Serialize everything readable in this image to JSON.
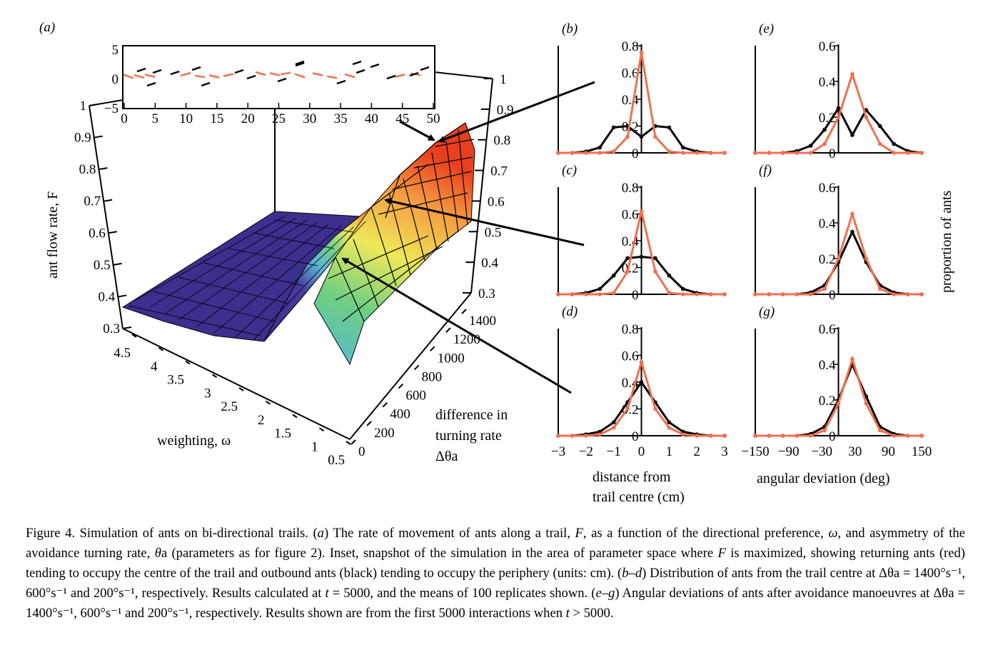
{
  "colors": {
    "red": "#f07050",
    "black": "#000000",
    "surface_low": "#3a2d8c",
    "surface_high": "#f04020"
  },
  "panel_a": {
    "label": "(a)",
    "zlabel": "ant flow rate, F",
    "z_ticks": [
      "0.3",
      "0.4",
      "0.5",
      "0.6",
      "0.7",
      "0.8",
      "0.9",
      "1"
    ],
    "right_z_ticks": [
      "0.3",
      "0.4",
      "0.5",
      "0.6",
      "0.7",
      "0.8",
      "0.9",
      "1"
    ],
    "w_ticks": [
      "4.5",
      "4",
      "3.5",
      "3",
      "2.5",
      "2",
      "1.5",
      "1",
      "0.5"
    ],
    "w_label": "weighting, ω",
    "dt_ticks": [
      "0",
      "200",
      "400",
      "600",
      "800",
      "1000",
      "1200",
      "1400"
    ],
    "dt_label_lines": [
      "difference in",
      "turning rate",
      "Δθa"
    ],
    "inset": {
      "x_ticks": [
        "0",
        "5",
        "10",
        "15",
        "20",
        "25",
        "30",
        "35",
        "40",
        "45",
        "50"
      ],
      "y_ticks": [
        "5",
        "0",
        "−5"
      ]
    }
  },
  "small_panels": {
    "labels": [
      "(b)",
      "(c)",
      "(d)",
      "(e)",
      "(f)",
      "(g)"
    ],
    "dist_y_ticks": [
      "0",
      "0.2",
      "0.4",
      "0.6",
      "0.8"
    ],
    "angle_y_ticks": [
      "0",
      "0.2",
      "0.4",
      "0.6"
    ],
    "dist_x_ticks": [
      "−3",
      "−2",
      "−1",
      "0",
      "1",
      "2",
      "3"
    ],
    "angle_x_ticks": [
      "−150",
      "−90",
      "−30",
      "30",
      "90",
      "150"
    ],
    "dist_xlabel_lines": [
      "distance from",
      "trail centre (cm)"
    ],
    "angle_xlabel": "angular deviation (deg)",
    "ylabel": "proportion of ants"
  },
  "chart_data": [
    {
      "type": "surface",
      "panel": "a",
      "xlabel": "weighting, ω",
      "ylabel": "difference in turning rate Δθa",
      "zlabel": "ant flow rate, F",
      "x_range": [
        0.5,
        4.5
      ],
      "y_range": [
        0,
        1400
      ],
      "zlim": [
        0.3,
        1
      ],
      "peak": {
        "w": 0.5,
        "dtheta": 1400,
        "F": 0.87
      }
    },
    {
      "type": "line",
      "panel": "b",
      "xlabel": "distance from trail centre (cm)",
      "ylim": [
        0,
        0.8
      ],
      "x": [
        -3,
        -2.5,
        -2,
        -1.5,
        -1,
        -0.5,
        0,
        0.5,
        1,
        1.5,
        2,
        2.5,
        3
      ],
      "series": [
        {
          "color": "black",
          "values": [
            0.0,
            0.0,
            0.01,
            0.04,
            0.19,
            0.2,
            0.12,
            0.2,
            0.19,
            0.04,
            0.01,
            0.0,
            0.0
          ]
        },
        {
          "color": "red",
          "values": [
            0.0,
            0.0,
            0.0,
            0.0,
            0.01,
            0.12,
            0.75,
            0.12,
            0.01,
            0.0,
            0.0,
            0.0,
            0.0
          ]
        }
      ]
    },
    {
      "type": "line",
      "panel": "c",
      "xlabel": "distance from trail centre (cm)",
      "ylim": [
        0,
        0.8
      ],
      "x": [
        -3,
        -2.5,
        -2,
        -1.5,
        -1,
        -0.5,
        0,
        0.5,
        1,
        1.5,
        2,
        2.5,
        3
      ],
      "series": [
        {
          "color": "black",
          "values": [
            0.0,
            0.0,
            0.01,
            0.04,
            0.14,
            0.27,
            0.28,
            0.27,
            0.14,
            0.04,
            0.01,
            0.0,
            0.0
          ]
        },
        {
          "color": "red",
          "values": [
            0.0,
            0.0,
            0.0,
            0.0,
            0.01,
            0.17,
            0.62,
            0.17,
            0.01,
            0.0,
            0.0,
            0.0,
            0.0
          ]
        }
      ]
    },
    {
      "type": "line",
      "panel": "d",
      "xlabel": "distance from trail centre (cm)",
      "ylim": [
        0,
        0.8
      ],
      "x": [
        -3,
        -2.5,
        -2,
        -1.5,
        -1,
        -0.5,
        0,
        0.5,
        1,
        1.5,
        2,
        2.5,
        3
      ],
      "series": [
        {
          "color": "black",
          "values": [
            0.0,
            0.0,
            0.01,
            0.03,
            0.1,
            0.25,
            0.4,
            0.25,
            0.1,
            0.03,
            0.01,
            0.0,
            0.0
          ]
        },
        {
          "color": "red",
          "values": [
            0.0,
            0.0,
            0.0,
            0.01,
            0.06,
            0.2,
            0.55,
            0.2,
            0.06,
            0.01,
            0.0,
            0.0,
            0.0
          ]
        }
      ]
    },
    {
      "type": "line",
      "panel": "e",
      "xlabel": "angular deviation (deg)",
      "ylim": [
        0,
        0.6
      ],
      "x": [
        -180,
        -150,
        -120,
        -90,
        -60,
        -30,
        0,
        30,
        60,
        90,
        120,
        150,
        180
      ],
      "series": [
        {
          "color": "black",
          "values": [
            0.0,
            0.0,
            0.0,
            0.01,
            0.04,
            0.13,
            0.25,
            0.1,
            0.24,
            0.15,
            0.05,
            0.01,
            0.0
          ]
        },
        {
          "color": "red",
          "values": [
            0.0,
            0.0,
            0.0,
            0.0,
            0.0,
            0.05,
            0.2,
            0.44,
            0.2,
            0.05,
            0.0,
            0.0,
            0.0
          ]
        }
      ]
    },
    {
      "type": "line",
      "panel": "f",
      "xlabel": "angular deviation (deg)",
      "ylim": [
        0,
        0.6
      ],
      "x": [
        -180,
        -150,
        -120,
        -90,
        -60,
        -30,
        0,
        30,
        60,
        90,
        120,
        150,
        180
      ],
      "series": [
        {
          "color": "black",
          "values": [
            0.0,
            0.0,
            0.0,
            0.0,
            0.01,
            0.05,
            0.18,
            0.35,
            0.18,
            0.05,
            0.01,
            0.0,
            0.0
          ]
        },
        {
          "color": "red",
          "values": [
            0.0,
            0.0,
            0.0,
            0.0,
            0.0,
            0.03,
            0.2,
            0.45,
            0.2,
            0.03,
            0.0,
            0.0,
            0.0
          ]
        }
      ]
    },
    {
      "type": "line",
      "panel": "g",
      "xlabel": "angular deviation (deg)",
      "ylim": [
        0,
        0.6
      ],
      "x": [
        -180,
        -150,
        -120,
        -90,
        -60,
        -30,
        0,
        30,
        60,
        90,
        120,
        150,
        180
      ],
      "series": [
        {
          "color": "black",
          "values": [
            0.0,
            0.0,
            0.0,
            0.0,
            0.01,
            0.05,
            0.2,
            0.4,
            0.22,
            0.05,
            0.01,
            0.0,
            0.0
          ]
        },
        {
          "color": "red",
          "values": [
            0.0,
            0.0,
            0.0,
            0.0,
            0.0,
            0.03,
            0.18,
            0.43,
            0.18,
            0.03,
            0.0,
            0.0,
            0.0
          ]
        }
      ]
    }
  ],
  "caption": {
    "part1": "Figure 4.  Simulation of ants on bi-directional trails. (",
    "a": "a",
    "part2": ") The rate of movement of ants along a trail, ",
    "F": "F",
    "part3": ", as a function of the directional preference, ",
    "w": "ω",
    "part4": ", and asymmetry of the avoidance turning rate, ",
    "theta": "θ",
    "part5": "a (parameters as for figure 2). Inset, snapshot of the simulation in the area of parameter space where ",
    "F2": "F",
    "part6": " is maximized, showing returning ants (red) tending to occupy the centre of the trail and outbound ants (black) tending to occupy the periphery (units: cm). (",
    "bd": "b–d",
    "part7": ") Distribution of ants from the trail centre at Δθa = 1400°s⁻¹, 600°s⁻¹ and 200°s⁻¹, respectively. Results calculated at ",
    "t": "t",
    "part8": " = 5000, and the means of 100 replicates shown. (",
    "eg": "e–g",
    "part9": ") Angular deviations of ants after avoidance manoeuvres at Δθa = 1400°s⁻¹, 600°s⁻¹ and 200°s⁻¹, respectively. Results shown are from the first 5000 interactions when ",
    "t2": "t",
    "part10": " > 5000."
  }
}
